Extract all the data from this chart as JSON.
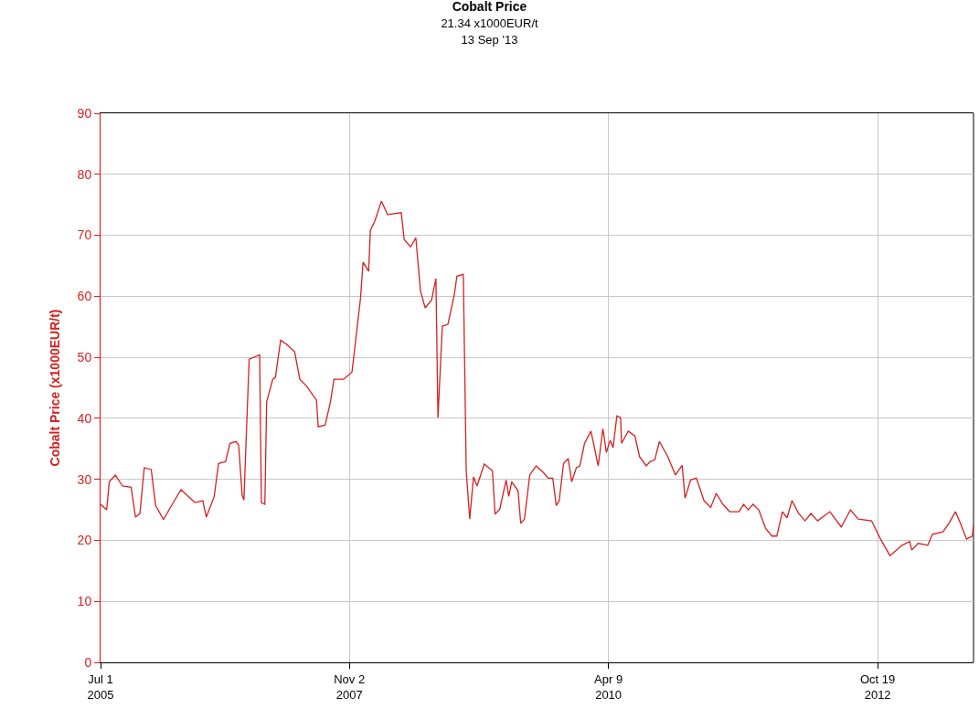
{
  "chart_data": {
    "type": "line",
    "title": "Cobalt Price",
    "subtitle": "21.34 x1000EUR/t\n13 Sep '13",
    "ylabel": "Cobalt Price (x1000EUR/t)",
    "x": [
      "2005-07-01",
      "2005-07-22",
      "2005-07-31",
      "2005-08-21",
      "2005-09-14",
      "2005-10-14",
      "2005-10-29",
      "2005-11-13",
      "2005-11-28",
      "2005-12-22",
      "2006-01-06",
      "2006-02-02",
      "2006-03-04",
      "2006-04-03",
      "2006-05-21",
      "2006-06-17",
      "2006-06-29",
      "2006-07-26",
      "2006-08-10",
      "2006-09-03",
      "2006-09-18",
      "2006-10-09",
      "2006-10-18",
      "2006-10-30",
      "2006-11-05",
      "2006-11-23",
      "2006-12-29",
      "2007-01-04",
      "2007-01-16",
      "2007-01-22",
      "2007-02-12",
      "2007-02-21",
      "2007-03-11",
      "2007-04-01",
      "2007-04-28",
      "2007-05-16",
      "2007-06-06",
      "2007-07-12",
      "2007-07-18",
      "2007-08-11",
      "2007-08-29",
      "2007-09-10",
      "2007-10-13",
      "2007-11-11",
      "2007-12-10",
      "2007-12-19",
      "2008-01-07",
      "2008-01-13",
      "2008-01-28",
      "2008-02-20",
      "2008-03-12",
      "2008-04-28",
      "2008-05-08",
      "2008-05-30",
      "2008-06-17",
      "2008-07-03",
      "2008-07-19",
      "2008-08-10",
      "2008-08-25",
      "2008-09-01",
      "2008-09-16",
      "2008-10-05",
      "2008-10-27",
      "2008-11-05",
      "2008-11-27",
      "2008-12-07",
      "2008-12-19",
      "2009-01-01",
      "2009-01-13",
      "2009-02-07",
      "2009-03-07",
      "2009-03-16",
      "2009-04-01",
      "2009-04-23",
      "2009-05-02",
      "2009-05-12",
      "2009-06-03",
      "2009-06-12",
      "2009-06-25",
      "2009-07-13",
      "2009-08-04",
      "2009-08-29",
      "2009-09-14",
      "2009-09-30",
      "2009-10-12",
      "2009-10-22",
      "2009-11-06",
      "2009-11-22",
      "2009-12-04",
      "2009-12-20",
      "2010-01-01",
      "2010-01-17",
      "2010-02-08",
      "2010-03-05",
      "2010-03-21",
      "2010-04-02",
      "2010-04-15",
      "2010-04-25",
      "2010-05-08",
      "2010-05-21",
      "2010-05-24",
      "2010-06-16",
      "2010-07-09",
      "2010-07-25",
      "2010-08-17",
      "2010-08-30",
      "2010-09-15",
      "2010-10-01",
      "2010-10-30",
      "2010-11-25",
      "2010-12-18",
      "2010-12-28",
      "2011-01-16",
      "2011-02-05",
      "2011-03-03",
      "2011-03-26",
      "2011-04-14",
      "2011-05-07",
      "2011-05-30",
      "2011-07-01",
      "2011-07-17",
      "2011-08-02",
      "2011-08-18",
      "2011-09-07",
      "2011-09-30",
      "2011-10-22",
      "2011-11-08",
      "2011-11-27",
      "2011-12-13",
      "2011-12-30",
      "2012-01-22",
      "2012-02-13",
      "2012-03-04",
      "2012-03-27",
      "2012-05-08",
      "2012-06-16",
      "2012-07-18",
      "2012-08-13",
      "2012-09-28",
      "2012-10-29",
      "2012-11-30",
      "2013-01-11",
      "2013-02-06",
      "2013-02-13",
      "2013-03-07",
      "2013-04-09",
      "2013-04-25",
      "2013-05-31",
      "2013-06-22",
      "2013-07-13",
      "2013-07-29",
      "2013-08-20",
      "2013-09-09",
      "2013-09-13"
    ],
    "series": [
      {
        "color": "#d42020",
        "values": [
          25.9,
          25.0,
          29.6,
          30.7,
          28.9,
          28.7,
          23.8,
          24.4,
          31.9,
          31.6,
          25.7,
          23.4,
          25.9,
          28.3,
          26.2,
          26.5,
          23.8,
          27.2,
          32.6,
          32.9,
          35.9,
          36.2,
          35.6,
          27.4,
          26.6,
          49.7,
          50.4,
          26.2,
          25.9,
          42.7,
          46.4,
          46.7,
          52.8,
          52.1,
          50.9,
          46.4,
          45.4,
          43.0,
          38.6,
          38.9,
          42.7,
          46.4,
          46.4,
          47.6,
          59.6,
          65.6,
          64.1,
          70.8,
          72.3,
          75.6,
          73.4,
          73.7,
          69.3,
          68.1,
          69.6,
          60.9,
          58.1,
          59.4,
          62.9,
          40.1,
          55.1,
          55.4,
          60.2,
          63.3,
          63.6,
          31.4,
          23.5,
          30.4,
          28.9,
          32.5,
          31.4,
          24.3,
          25.1,
          29.9,
          27.2,
          29.6,
          28.1,
          22.8,
          23.5,
          30.7,
          32.2,
          31.1,
          30.2,
          30.2,
          25.7,
          26.5,
          32.6,
          33.4,
          29.6,
          31.9,
          32.2,
          35.9,
          37.9,
          32.2,
          38.3,
          34.4,
          36.4,
          35.2,
          40.4,
          40.1,
          35.9,
          37.9,
          37.1,
          33.7,
          32.2,
          32.9,
          33.2,
          36.2,
          33.7,
          30.7,
          32.3,
          26.9,
          29.9,
          30.2,
          26.5,
          25.4,
          27.7,
          25.9,
          24.7,
          24.7,
          25.9,
          25.0,
          25.9,
          25.0,
          22.0,
          20.7,
          20.7,
          24.7,
          23.7,
          26.5,
          24.4,
          23.2,
          24.4,
          23.2,
          24.7,
          22.2,
          25.0,
          23.5,
          23.2,
          20.2,
          17.5,
          19.2,
          19.8,
          18.4,
          19.5,
          19.2,
          21.0,
          21.4,
          22.9,
          24.7,
          22.9,
          20.2,
          20.7,
          22.5
        ]
      }
    ],
    "xlim": [
      "2005-07-01",
      "2013-09-13"
    ],
    "xticks": [
      {
        "value": "2005-07-01",
        "label": "Jul 1\n2005"
      },
      {
        "value": "2007-11-02",
        "label": "Nov 2\n2007"
      },
      {
        "value": "2010-04-09",
        "label": "Apr 9\n2010"
      },
      {
        "value": "2012-10-19",
        "label": "Oct 19\n2012"
      }
    ],
    "ylim": [
      0,
      90
    ],
    "yticks": [
      0,
      10,
      20,
      30,
      40,
      50,
      60,
      70,
      80,
      90
    ],
    "grid": true,
    "marker": "none",
    "line_style": "solid"
  }
}
